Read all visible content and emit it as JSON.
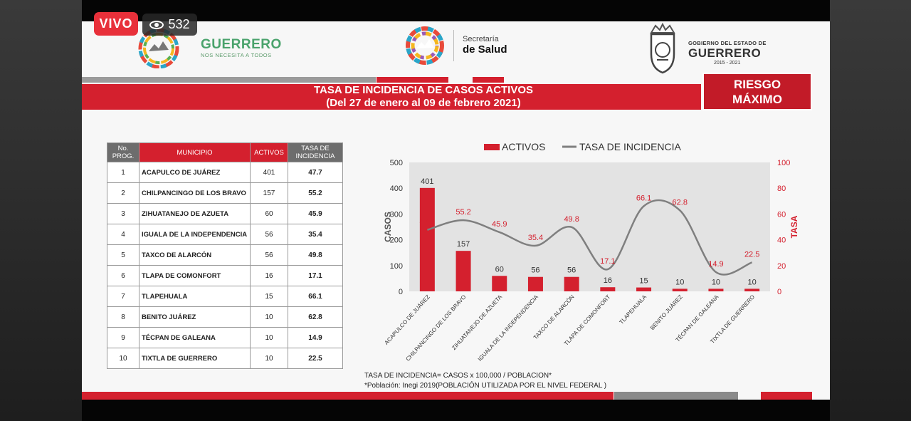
{
  "stream": {
    "live_label": "VIVO",
    "viewers": "532"
  },
  "header": {
    "brand1": "GUERRERO",
    "brand1_tagline": "NOS NECESITA A TODOS",
    "brand2_line1": "Secretaría",
    "brand2_line2": "de Salud",
    "brand3_line1": "GOBIERNO DEL ESTADO DE",
    "brand3_line2": "GUERRERO",
    "brand3_line3": "2015 - 2021"
  },
  "banner": {
    "title_line1": "TASA DE INCIDENCIA DE CASOS ACTIVOS",
    "title_line2": "(Del 27 de enero al 09 de febrero 2021)",
    "risk_line1": "RIESGO",
    "risk_line2": "MÁXIMO"
  },
  "table": {
    "headers": {
      "no": "No. PROG.",
      "municipio": "MUNICIPIO",
      "activos": "ACTIVOS",
      "tasa": "TASA DE INCIDENCIA"
    },
    "rows": [
      {
        "no": "1",
        "municipio": "ACAPULCO DE JUÁREZ",
        "activos": "401",
        "tasa": "47.7"
      },
      {
        "no": "2",
        "municipio": "CHILPANCINGO DE LOS BRAVO",
        "activos": "157",
        "tasa": "55.2"
      },
      {
        "no": "3",
        "municipio": "ZIHUATANEJO DE AZUETA",
        "activos": "60",
        "tasa": "45.9"
      },
      {
        "no": "4",
        "municipio": "IGUALA DE LA INDEPENDENCIA",
        "activos": "56",
        "tasa": "35.4"
      },
      {
        "no": "5",
        "municipio": "TAXCO DE ALARCÓN",
        "activos": "56",
        "tasa": "49.8"
      },
      {
        "no": "6",
        "municipio": "TLAPA DE COMONFORT",
        "activos": "16",
        "tasa": "17.1"
      },
      {
        "no": "7",
        "municipio": "TLAPEHUALA",
        "activos": "15",
        "tasa": "66.1"
      },
      {
        "no": "8",
        "municipio": "BENITO JUÁREZ",
        "activos": "10",
        "tasa": "62.8"
      },
      {
        "no": "9",
        "municipio": "TÉCPAN DE GALEANA",
        "activos": "10",
        "tasa": "14.9"
      },
      {
        "no": "10",
        "municipio": "TIXTLA DE GUERRERO",
        "activos": "10",
        "tasa": "22.5"
      }
    ]
  },
  "notes": {
    "formula": "TASA DE INCIDENCIA= CASOS x 100,000 / POBLACION*",
    "source": "*Población: Inegi 2019(POBLACIÓN UTILIZADA POR EL NIVEL FEDERAL )"
  },
  "colors": {
    "accent_red": "#d4202e",
    "line_gray": "#7f7f7f",
    "plot_bg": "#e3e3e3"
  },
  "chart_data": {
    "type": "bar",
    "title": "",
    "categories": [
      "ACAPULCO DE JUÁREZ",
      "CHILPANCINGO DE LOS BRAVO",
      "ZIHUATANEJO DE AZUETA",
      "IGUALA DE LA INDEPENDENCIA",
      "TAXCO DE ALARCÓN",
      "TLAPA DE COMONFORT",
      "TLAPEHUALA",
      "BENITO JUÁREZ",
      "TÉCPAN DE GALEANA",
      "TIXTLA DE GUERRERO"
    ],
    "series": [
      {
        "name": "ACTIVOS",
        "type": "bar",
        "axis": "left",
        "values": [
          401,
          157,
          60,
          56,
          56,
          16,
          15,
          10,
          10,
          10
        ]
      },
      {
        "name": "TASA DE INCIDENCIA",
        "type": "line",
        "axis": "right",
        "values": [
          47.7,
          55.2,
          45.9,
          35.4,
          49.8,
          17.1,
          66.1,
          62.8,
          14.9,
          22.5
        ]
      }
    ],
    "ylabel": "CASOS",
    "y2label": "TASA",
    "ylim": [
      0,
      500
    ],
    "y2lim": [
      0,
      100
    ],
    "yticks": [
      "500",
      "400",
      "300",
      "200",
      "100",
      "0"
    ],
    "y2ticks": [
      "100",
      "80",
      "60",
      "40",
      "20",
      "0"
    ],
    "legend_position": "top",
    "grid": false
  }
}
